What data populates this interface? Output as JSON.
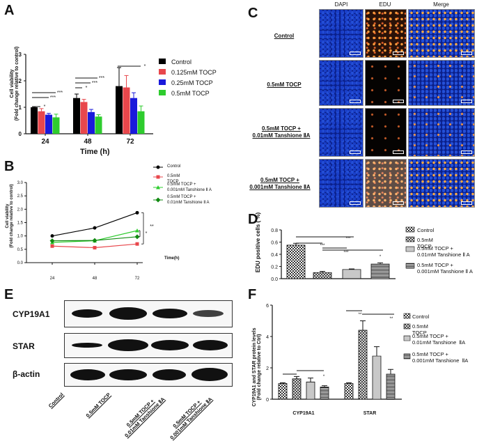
{
  "panels": {
    "A": "A",
    "B": "B",
    "C": "C",
    "D": "D",
    "E": "E",
    "F": "F"
  },
  "panelA": {
    "ylabel_line1": "Cell viability",
    "ylabel_line2": "(Fold change relative to control)",
    "xlabel": "Time (h)",
    "legend": [
      "Control",
      "0.125mM TOCP",
      "0.25mM  TOCP",
      "0.5mM    TOCP"
    ],
    "colors": [
      "#000000",
      "#e8474c",
      "#1a1adb",
      "#2ecc2e"
    ],
    "yticks": [
      "0",
      "1",
      "2",
      "3"
    ],
    "sig": [
      "*",
      "***",
      "***",
      "*",
      "***",
      "***",
      "*"
    ]
  },
  "panelB": {
    "ylabel_line1": "Cell viability",
    "ylabel_line2": "(Fold change relative to control)",
    "xlabel": "Time(h)",
    "legend": [
      "Control",
      "0.5mM TOCP",
      "0.5mM TOCP +\n0.001mM Tanshione Ⅱ A",
      "0.5mM TOCP +\n0.01mM Tanshione Ⅱ A"
    ],
    "colors": [
      "#000000",
      "#e8474c",
      "#2ecc2e",
      "#118a11"
    ],
    "yticks": [
      "0.0",
      "0.5",
      "1.0",
      "1.5",
      "2.0",
      "2.5",
      "3.0"
    ],
    "sig": [
      "**",
      "*"
    ]
  },
  "panelC": {
    "col_heads": [
      "DAPI",
      "EDU",
      "Merge"
    ],
    "rows": [
      "Control",
      "0.5mM TOCP",
      "0.5mM TOCP +\n0.01mM Tanshione ⅡA",
      "0.5mM TOCP +\n0.001mM Tanshione ⅡA"
    ]
  },
  "panelD": {
    "ylabel": "EDU positive cells ( %)",
    "legend": [
      "Control",
      "0.5mM TOCP",
      "0.5mM TOCP +\n0.01mM Tanshione Ⅱ A",
      "0.5mM TOCP +\n0.001mM Tanshione Ⅱ A"
    ],
    "yticks": [
      "0.0",
      "0.2",
      "0.4",
      "0.6",
      "0.8"
    ],
    "sig": [
      "***",
      "***",
      "***",
      "*"
    ]
  },
  "panelE": {
    "rows": [
      "CYP19A1",
      "STAR",
      "β-actin"
    ],
    "lanes": [
      "Control",
      "0.5mM TOCP",
      "0.5mM TOCP +\n0.01mM Tanshione ⅡA",
      "0.5mM TOCP +\n0.001mM Tanshione ⅡA"
    ]
  },
  "panelF": {
    "ylabel_line1": "CYP19A1 and STAR protein levels",
    "ylabel_line2": "(Fold change relative to Ctrl)",
    "legend": [
      "Control",
      "0.5mM TOCP",
      "0.5mM TOCP +\n0.01mM Tanshione  ⅡA",
      "0.5mM TOCP +\n0.001mM Tanshione  ⅡA"
    ],
    "yticks": [
      "0",
      "2",
      "4",
      "6"
    ],
    "sig": [
      "*",
      "*",
      "**",
      "**"
    ]
  },
  "chart_data": [
    {
      "type": "bar",
      "panel": "A",
      "categories": [
        "24",
        "48",
        "72"
      ],
      "xlabel": "Time (h)",
      "ylabel": "Cell viability (Fold change relative to control)",
      "ylim": [
        0,
        3
      ],
      "series": [
        {
          "name": "Control",
          "values": [
            1.0,
            1.35,
            1.8
          ],
          "err": [
            0.02,
            0.15,
            0.7
          ]
        },
        {
          "name": "0.125mM TOCP",
          "values": [
            0.85,
            1.2,
            1.75
          ],
          "err": [
            0.1,
            0.1,
            0.45
          ]
        },
        {
          "name": "0.25mM  TOCP",
          "values": [
            0.72,
            0.82,
            1.35
          ],
          "err": [
            0.05,
            0.1,
            0.2
          ]
        },
        {
          "name": "0.5mM    TOCP",
          "values": [
            0.62,
            0.65,
            0.85
          ],
          "err": [
            0.12,
            0.07,
            0.2
          ]
        }
      ]
    },
    {
      "type": "line",
      "panel": "B",
      "x": [
        "24",
        "48",
        "72"
      ],
      "xlabel": "Time(h)",
      "ylabel": "Cell viability (Fold change relative to control)",
      "ylim": [
        0,
        3
      ],
      "series": [
        {
          "name": "Control",
          "values": [
            1.0,
            1.3,
            1.87
          ]
        },
        {
          "name": "0.5mM TOCP",
          "values": [
            0.62,
            0.56,
            0.7
          ]
        },
        {
          "name": "0.5mM TOCP + 0.001mM Tanshione Ⅱ A",
          "values": [
            0.76,
            0.82,
            1.2
          ]
        },
        {
          "name": "0.5mM TOCP + 0.01mM Tanshione Ⅱ A",
          "values": [
            0.82,
            0.83,
            0.97
          ]
        }
      ]
    },
    {
      "type": "bar",
      "panel": "D",
      "categories": [
        "Control",
        "0.5mM TOCP",
        "0.5mM TOCP + 0.01mM Tanshione Ⅱ A",
        "0.5mM TOCP + 0.001mM Tanshione Ⅱ A"
      ],
      "ylabel": "EDU positive cells ( %)",
      "ylim": [
        0,
        0.8
      ],
      "values": [
        0.55,
        0.1,
        0.15,
        0.24
      ],
      "err": [
        0.03,
        0.02,
        0.01,
        0.02
      ]
    },
    {
      "type": "bar",
      "panel": "F",
      "categories": [
        "CYP19A1",
        "STAR"
      ],
      "ylabel": "CYP19A1 and STAR protein levels (Fold change relative to Ctrl)",
      "ylim": [
        0,
        6
      ],
      "series": [
        {
          "name": "Control",
          "values": [
            1.0,
            1.0
          ],
          "err": [
            0.05,
            0.05
          ]
        },
        {
          "name": "0.5mM TOCP",
          "values": [
            1.3,
            4.4
          ],
          "err": [
            0.15,
            0.6
          ]
        },
        {
          "name": "0.5mM TOCP + 0.01mM Tanshione  ⅡA",
          "values": [
            1.1,
            2.75
          ],
          "err": [
            0.25,
            0.6
          ]
        },
        {
          "name": "0.5mM TOCP + 0.001mM Tanshione  ⅡA",
          "values": [
            0.78,
            1.6
          ],
          "err": [
            0.08,
            0.3
          ]
        }
      ]
    }
  ]
}
